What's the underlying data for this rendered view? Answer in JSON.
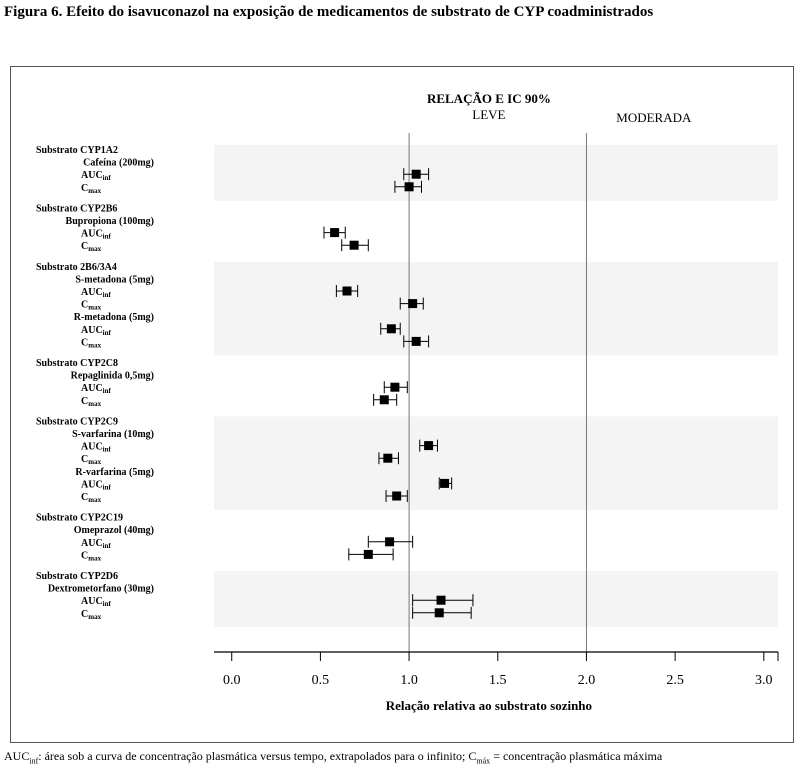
{
  "figure": {
    "title": "Figura 6.   Efeito do isavuconazol na exposição de medicamentos de substrato de CYP coadministrados"
  },
  "footnote": {
    "auc_main": "AUC",
    "auc_sub": "inf",
    "auc_def": ": área sob a curva de concentração plasmática versus tempo, extrapolados para o infinito; C",
    "cmax_sub": "máx",
    "cmax_def": " = concentração plasmática máxima"
  },
  "chart_data": {
    "type": "forest",
    "header": "RELAÇÃO E IC 90%",
    "zones": [
      "LEVE",
      "MODERADA"
    ],
    "reference_lines": [
      1.0,
      2.0
    ],
    "xlabel": "Relação relativa ao substrato sozinho",
    "xlim": [
      -0.1,
      3.08
    ],
    "xticks": [
      "0.0",
      "0.5",
      "1.0",
      "1.5",
      "2.0",
      "2.5",
      "3.0"
    ],
    "colors": {
      "band": "#f4f4f4",
      "line": "#777777",
      "marker": "#000000"
    },
    "groups": [
      {
        "substrate": "Substrato CYP1A2",
        "drugs": [
          {
            "name": "Cafeína (200mg)",
            "measures": [
              {
                "label": "AUC",
                "sub": "inf",
                "ratio": 1.04,
                "lower": 0.97,
                "upper": 1.11
              },
              {
                "label": "C",
                "sub": "max",
                "ratio": 1.0,
                "lower": 0.92,
                "upper": 1.07
              }
            ]
          }
        ]
      },
      {
        "substrate": "Substrato CYP2B6",
        "drugs": [
          {
            "name": "Bupropiona (100mg)",
            "measures": [
              {
                "label": "AUC",
                "sub": "inf",
                "ratio": 0.58,
                "lower": 0.52,
                "upper": 0.64
              },
              {
                "label": "C",
                "sub": "max",
                "ratio": 0.69,
                "lower": 0.62,
                "upper": 0.77
              }
            ]
          }
        ]
      },
      {
        "substrate": "Substrato 2B6/3A4",
        "drugs": [
          {
            "name": "S-metadona (5mg)",
            "measures": [
              {
                "label": "AUC",
                "sub": "inf",
                "ratio": 0.65,
                "lower": 0.59,
                "upper": 0.71
              },
              {
                "label": "C",
                "sub": "max",
                "ratio": 1.02,
                "lower": 0.95,
                "upper": 1.08
              }
            ]
          },
          {
            "name": "R-metadona (5mg)",
            "measures": [
              {
                "label": "AUC",
                "sub": "inf",
                "ratio": 0.9,
                "lower": 0.84,
                "upper": 0.95
              },
              {
                "label": "C",
                "sub": "max",
                "ratio": 1.04,
                "lower": 0.97,
                "upper": 1.11
              }
            ]
          }
        ]
      },
      {
        "substrate": "Substrato CYP2C8",
        "drugs": [
          {
            "name": "Repaglinida  0,5mg)",
            "measures": [
              {
                "label": "AUC",
                "sub": "inf",
                "ratio": 0.92,
                "lower": 0.86,
                "upper": 0.99
              },
              {
                "label": "C",
                "sub": "max",
                "ratio": 0.86,
                "lower": 0.8,
                "upper": 0.93
              }
            ]
          }
        ]
      },
      {
        "substrate": "Substrato CYP2C9",
        "drugs": [
          {
            "name": "S-varfarina (10mg)",
            "measures": [
              {
                "label": "AUC",
                "sub": "inf",
                "ratio": 1.11,
                "lower": 1.06,
                "upper": 1.16
              },
              {
                "label": "C",
                "sub": "max",
                "ratio": 0.88,
                "lower": 0.83,
                "upper": 0.94
              }
            ]
          },
          {
            "name": "R-varfarina (5mg)",
            "measures": [
              {
                "label": "AUC",
                "sub": "inf",
                "ratio": 1.2,
                "lower": 1.17,
                "upper": 1.24
              },
              {
                "label": "C",
                "sub": "max",
                "ratio": 0.93,
                "lower": 0.87,
                "upper": 0.99
              }
            ]
          }
        ]
      },
      {
        "substrate": "Substrato CYP2C19",
        "drugs": [
          {
            "name": "Omeprazol (40mg)",
            "measures": [
              {
                "label": "AUC",
                "sub": "inf",
                "ratio": 0.89,
                "lower": 0.77,
                "upper": 1.02
              },
              {
                "label": "C",
                "sub": "max",
                "ratio": 0.77,
                "lower": 0.66,
                "upper": 0.91
              }
            ]
          }
        ]
      },
      {
        "substrate": "Substrato CYP2D6",
        "drugs": [
          {
            "name": "Dextrometorfano (30mg)",
            "measures": [
              {
                "label": "AUC",
                "sub": "inf",
                "ratio": 1.18,
                "lower": 1.02,
                "upper": 1.36
              },
              {
                "label": "C",
                "sub": "max",
                "ratio": 1.17,
                "lower": 1.02,
                "upper": 1.35
              }
            ]
          }
        ]
      }
    ]
  }
}
